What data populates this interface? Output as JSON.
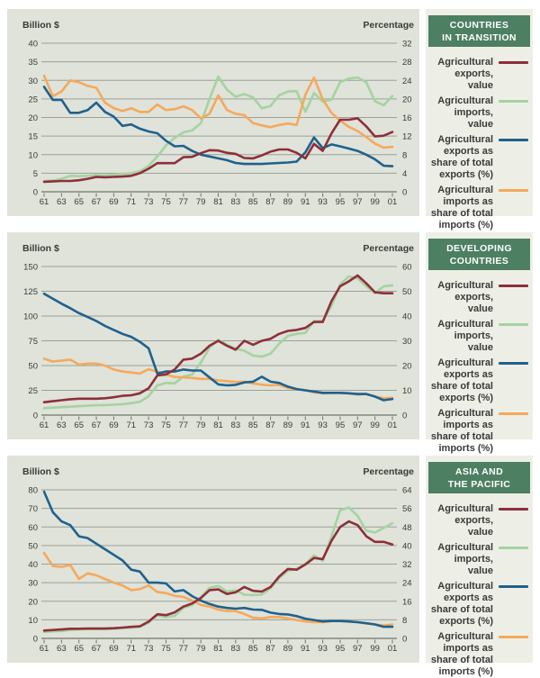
{
  "colors": {
    "header_green": "#4d7f62",
    "chart_panel_bg": "#dfe3da",
    "legend_panel_bg": "#edefe7",
    "grid": "#9aa198",
    "axis": "#6f756c",
    "exports_value": "#8e2f39",
    "imports_value": "#a5d3a0",
    "exports_share": "#1f618d",
    "imports_share": "#f5a95b"
  },
  "legend": {
    "items": [
      {
        "key": "exports_value",
        "label": "Agricultural\nexports, value"
      },
      {
        "key": "imports_value",
        "label": "Agricultural\nimports, value"
      },
      {
        "key": "exports_share",
        "label": "Agricultural\nexports as\nshare of total\nexports (%)"
      },
      {
        "key": "imports_share",
        "label": "Agricultural\nimports as\nshare of total\nimports (%)"
      }
    ]
  },
  "x_axis": {
    "tick_labels": [
      "61",
      "63",
      "65",
      "67",
      "69",
      "71",
      "73",
      "75",
      "77",
      "79",
      "81",
      "83",
      "85",
      "87",
      "89",
      "91",
      "93",
      "95",
      "97",
      "99",
      "01"
    ],
    "years_start": 1961,
    "years_end": 2001
  },
  "chart_data": [
    {
      "type": "line",
      "region": "COUNTRIES\nIN TRANSITION",
      "left_axis": {
        "title": "Billion $",
        "max": 40,
        "ticks": [
          0,
          5,
          10,
          15,
          20,
          25,
          30,
          35,
          40
        ]
      },
      "right_axis": {
        "title": "Percentage",
        "max": 32,
        "ticks": [
          0,
          4,
          8,
          12,
          16,
          20,
          24,
          28,
          32
        ]
      },
      "series": [
        {
          "key": "imports_value",
          "name": "Agricultural imports, value",
          "axis": "left",
          "values": [
            2.9,
            3.0,
            3.5,
            4.3,
            4.2,
            4.3,
            4.5,
            4.4,
            4.6,
            4.8,
            5.0,
            5.5,
            7.0,
            9.5,
            12.5,
            14.5,
            16.0,
            16.5,
            18.5,
            25.0,
            31.0,
            27.5,
            25.6,
            26.3,
            25.4,
            22.5,
            23.1,
            26.0,
            27.0,
            27.1,
            21.5,
            26.6,
            24.3,
            24.8,
            29.5,
            30.5,
            30.8,
            29.5,
            24.4,
            23.3,
            25.8
          ]
        },
        {
          "key": "imports_share",
          "name": "Agricultural imports as share of total imports (%)",
          "axis": "right",
          "values": [
            25.0,
            20.6,
            21.6,
            24.0,
            23.6,
            22.8,
            22.4,
            19.2,
            18.0,
            17.4,
            18.0,
            17.2,
            17.2,
            18.8,
            17.6,
            17.8,
            18.4,
            17.6,
            15.8,
            16.8,
            20.8,
            17.6,
            16.8,
            16.5,
            14.8,
            14.3,
            13.9,
            14.4,
            14.7,
            14.4,
            20.9,
            24.6,
            19.9,
            17.0,
            15.3,
            14.0,
            13.1,
            11.8,
            10.4,
            9.5,
            9.7
          ]
        },
        {
          "key": "exports_share",
          "name": "Agricultural exports as share of total exports (%)",
          "axis": "right",
          "values": [
            22.6,
            19.8,
            19.8,
            17.0,
            17.0,
            17.6,
            19.2,
            17.2,
            16.2,
            14.2,
            14.5,
            13.6,
            13.0,
            12.6,
            11.0,
            9.8,
            9.9,
            8.8,
            8.0,
            7.6,
            7.2,
            6.8,
            6.2,
            6.0,
            6.0,
            6.0,
            6.1,
            6.2,
            6.3,
            6.5,
            8.5,
            11.7,
            9.4,
            10.2,
            9.8,
            9.3,
            8.8,
            8.0,
            7.0,
            5.6,
            5.5
          ]
        },
        {
          "key": "exports_value",
          "name": "Agricultural exports, value",
          "axis": "left",
          "values": [
            2.7,
            2.8,
            2.9,
            2.9,
            3.1,
            3.5,
            4.0,
            3.9,
            4.0,
            4.1,
            4.3,
            5.0,
            6.2,
            7.7,
            7.7,
            7.7,
            9.3,
            9.4,
            10.4,
            11.2,
            11.1,
            10.5,
            10.2,
            9.1,
            9.0,
            9.8,
            10.8,
            11.4,
            11.4,
            10.5,
            9.0,
            12.9,
            11.0,
            15.7,
            19.4,
            19.4,
            19.8,
            17.6,
            14.9,
            15.1,
            16.1
          ]
        }
      ]
    },
    {
      "type": "line",
      "region": "DEVELOPING\nCOUNTRIES",
      "left_axis": {
        "title": "Billion $",
        "max": 150,
        "ticks": [
          0,
          25,
          50,
          75,
          100,
          125,
          150
        ]
      },
      "right_axis": {
        "title": "Percentage",
        "max": 60,
        "ticks": [
          0,
          10,
          20,
          30,
          40,
          50,
          60
        ]
      },
      "series": [
        {
          "key": "imports_value",
          "name": "Agricultural imports, value",
          "axis": "left",
          "values": [
            7,
            7.5,
            8,
            8.5,
            9,
            9.5,
            10,
            10,
            10.5,
            11,
            12,
            13.5,
            19,
            30,
            32.5,
            32,
            39,
            41,
            53,
            68,
            76,
            71,
            67,
            65,
            60,
            59,
            62,
            72,
            80,
            82,
            83,
            95,
            95,
            110,
            132,
            140,
            138,
            130,
            123,
            130,
            131
          ]
        },
        {
          "key": "imports_share",
          "name": "Agricultural imports as share of total imports (%)",
          "axis": "right",
          "values": [
            22.8,
            21.6,
            22,
            22.4,
            20.4,
            20.8,
            20.8,
            20,
            18.4,
            17.6,
            17.2,
            16.8,
            18.5,
            17.6,
            16.4,
            15.4,
            15.2,
            15,
            14.6,
            14.6,
            14,
            13.7,
            13.4,
            13.5,
            12.8,
            12.3,
            12,
            12.2,
            11,
            10.5,
            10,
            9.2,
            8.8,
            9,
            9,
            8.8,
            8.3,
            8.5,
            7.5,
            6.8,
            7
          ]
        },
        {
          "key": "exports_share",
          "name": "Agricultural exports as share of total exports (%)",
          "axis": "right",
          "values": [
            49,
            47,
            45,
            43.2,
            41.2,
            39.6,
            38,
            36,
            34.4,
            32.8,
            31.6,
            29.6,
            27,
            16.8,
            17.6,
            17.6,
            18.4,
            18,
            18,
            15.2,
            12.4,
            12,
            12.2,
            13.2,
            13.5,
            15.5,
            13.5,
            13,
            11.5,
            10.5,
            10,
            9.5,
            9,
            9,
            9,
            8.8,
            8.5,
            8.5,
            7.5,
            6,
            6.5
          ]
        },
        {
          "key": "exports_value",
          "name": "Agricultural exports, value",
          "axis": "left",
          "values": [
            13,
            14,
            15,
            16,
            16.5,
            16.5,
            16.5,
            17,
            18,
            19.5,
            20,
            22,
            27,
            40,
            41,
            46,
            56,
            57,
            62,
            70,
            75,
            70,
            66,
            75,
            71,
            75,
            77,
            82,
            85,
            86,
            88,
            94,
            94,
            115,
            130,
            135,
            141,
            133,
            124,
            123,
            123
          ]
        }
      ]
    },
    {
      "type": "line",
      "region": "ASIA AND\nTHE PACIFIC",
      "left_axis": {
        "title": "Billion $",
        "max": 80,
        "ticks": [
          0,
          10,
          20,
          30,
          40,
          50,
          60,
          70,
          80
        ]
      },
      "right_axis": {
        "title": "Percentage",
        "max": 64,
        "ticks": [
          0,
          8,
          16,
          24,
          32,
          40,
          48,
          56,
          64
        ]
      },
      "series": [
        {
          "key": "imports_value",
          "name": "Agricultural imports, value",
          "axis": "left",
          "values": [
            3.5,
            3.8,
            4,
            4.5,
            4.8,
            5,
            5,
            5,
            5.2,
            5.5,
            5.8,
            6.2,
            8.5,
            12.3,
            11.5,
            12.1,
            16.4,
            18,
            22.3,
            27.2,
            28.2,
            25.2,
            25.9,
            23.5,
            23.3,
            23.6,
            27,
            32.5,
            36.5,
            37.4,
            40.1,
            44.7,
            41.7,
            55,
            69,
            70.5,
            66,
            58,
            57,
            59.5,
            62
          ]
        },
        {
          "key": "imports_share",
          "name": "Agricultural imports as share of total imports (%)",
          "axis": "right",
          "values": [
            36.8,
            31.2,
            30.8,
            31.6,
            25.6,
            28,
            27.2,
            25.6,
            24,
            22.8,
            20.8,
            21.2,
            22.8,
            20,
            19.5,
            18.3,
            17.9,
            16.3,
            14.4,
            13.7,
            12.4,
            11.8,
            11.8,
            10.5,
            8.9,
            8.6,
            9.2,
            9.2,
            8.6,
            7.9,
            7.3,
            7,
            7,
            7.5,
            7.5,
            7.2,
            7,
            6.5,
            6,
            5.5,
            6
          ]
        },
        {
          "key": "exports_share",
          "name": "Agricultural exports as share of total exports (%)",
          "axis": "right",
          "values": [
            63.2,
            54.4,
            50.4,
            48.8,
            44,
            43.2,
            40.8,
            38.4,
            36,
            33.6,
            29.6,
            28.8,
            24,
            24,
            23.7,
            20.2,
            20.8,
            18.2,
            16.3,
            14.8,
            13.7,
            13.1,
            12.8,
            13.1,
            12.4,
            12.3,
            11.1,
            10.5,
            10.3,
            9.6,
            8.5,
            7.9,
            7.3,
            7.5,
            7.5,
            7.3,
            7,
            6.5,
            6,
            5,
            5
          ]
        },
        {
          "key": "exports_value",
          "name": "Agricultural exports, value",
          "axis": "left",
          "values": [
            4.2,
            4.5,
            4.8,
            5.2,
            5.2,
            5.3,
            5.3,
            5.3,
            5.5,
            5.8,
            6.2,
            6.5,
            9,
            13,
            12.5,
            14,
            17.1,
            18.8,
            21.7,
            26,
            26.4,
            23.9,
            24.8,
            27.7,
            25.6,
            25.2,
            27.7,
            33.3,
            37.4,
            37,
            39.8,
            43.3,
            42.7,
            52.5,
            60,
            63,
            61,
            55,
            52,
            52,
            50.5
          ]
        }
      ]
    }
  ]
}
